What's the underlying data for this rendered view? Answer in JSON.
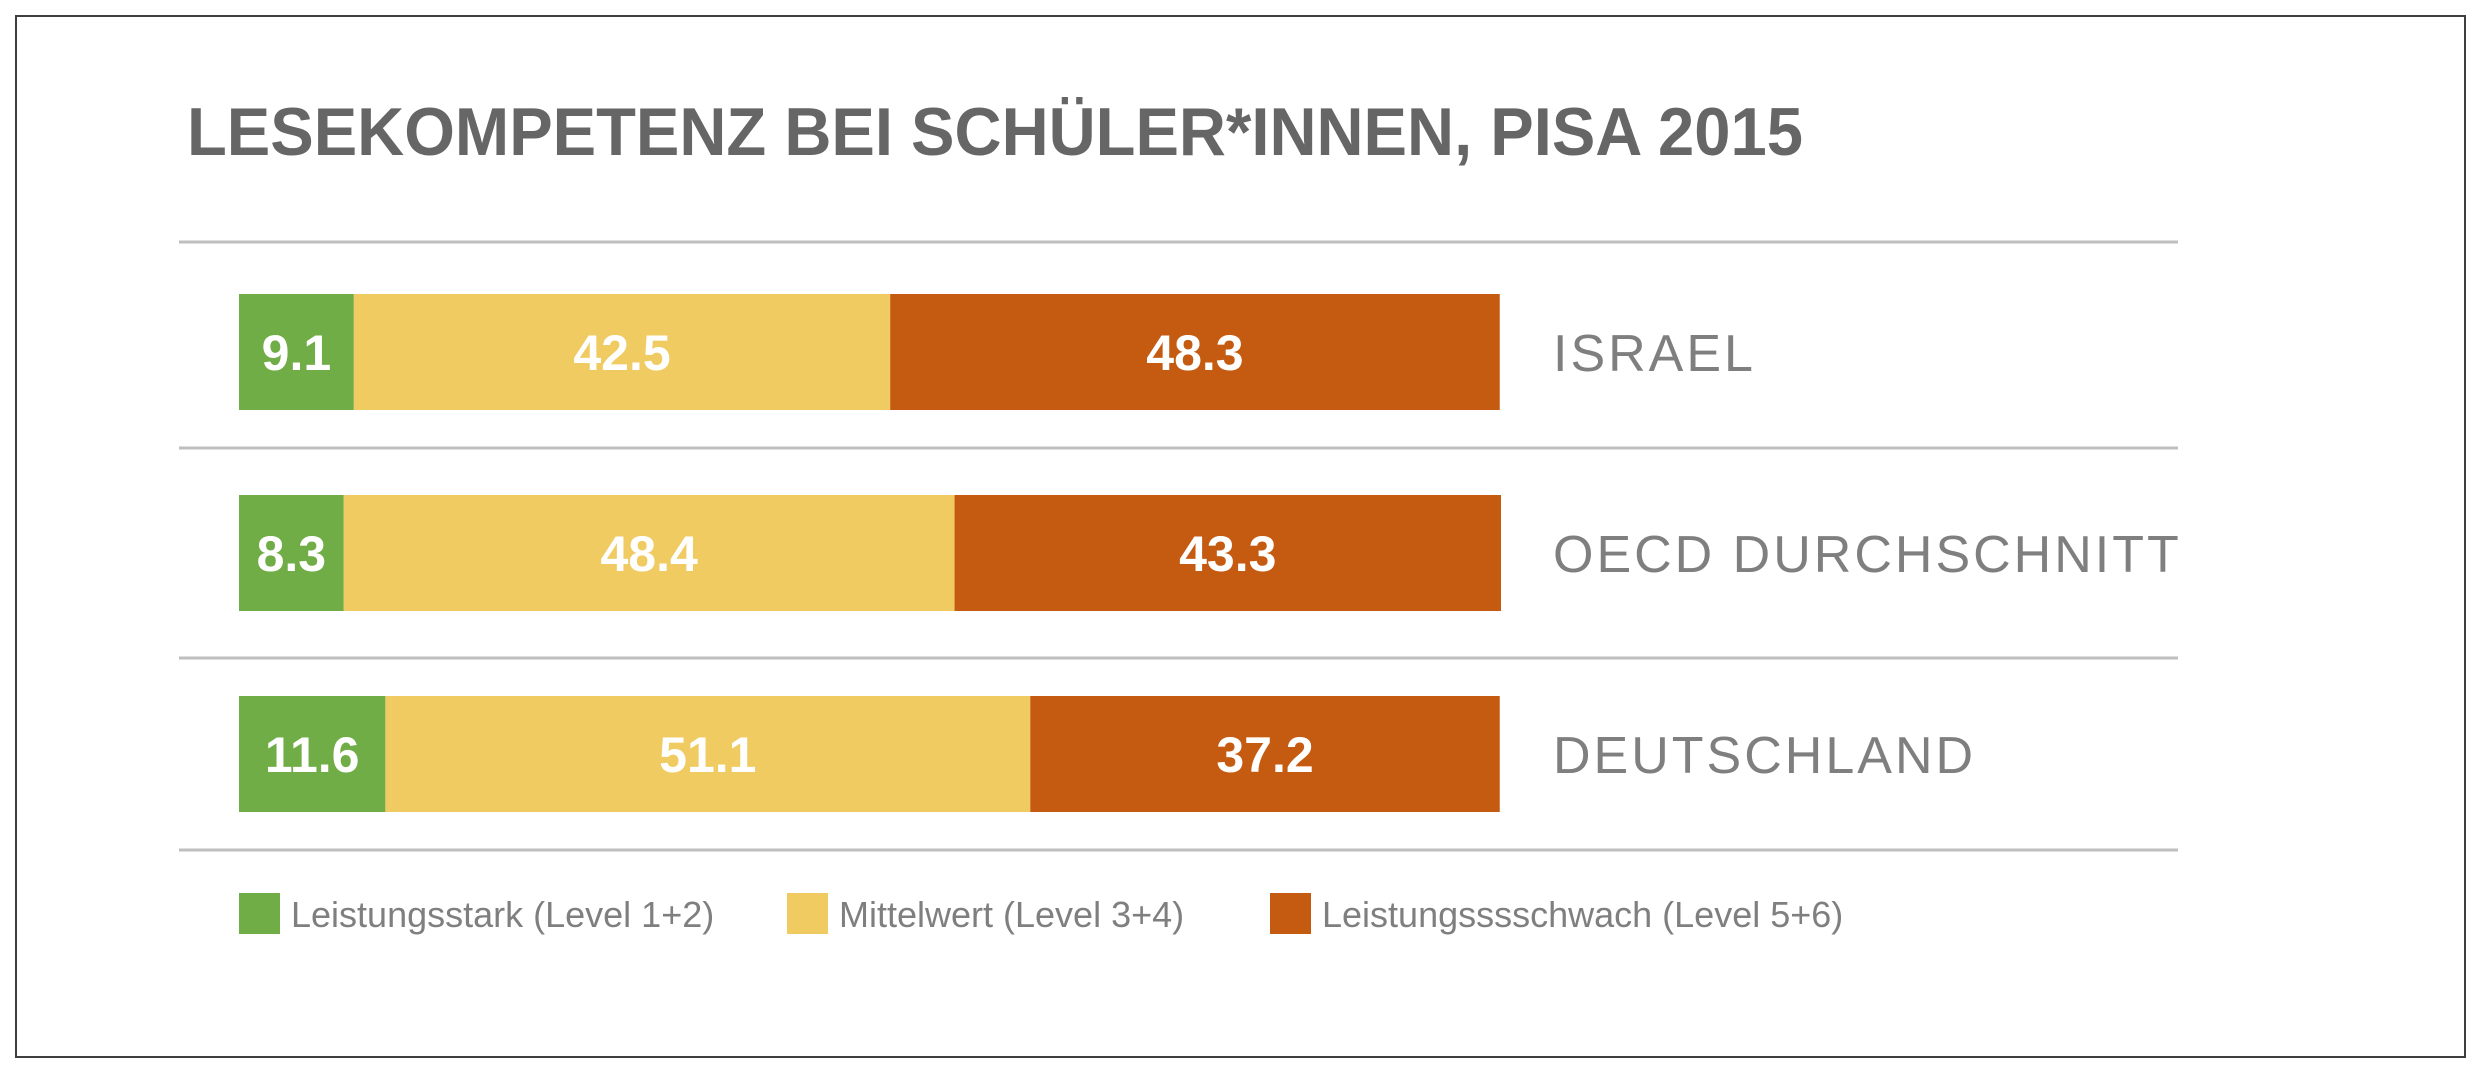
{
  "chart_data": {
    "type": "bar",
    "orientation": "horizontal",
    "stacked": true,
    "title": "LESEKOMPETENZ BEI SCHÜLER*INNEN, PISA 2015",
    "categories": [
      "ISRAEL",
      "OECD DURCHSCHNITT",
      "DEUTSCHLAND"
    ],
    "series": [
      {
        "name": "Leistungsstark (Level 1+2)",
        "color": "#70ad47",
        "values": [
          9.1,
          8.3,
          11.6
        ]
      },
      {
        "name": "Mittelwert (Level 3+4)",
        "color": "#f0cb62",
        "values": [
          42.5,
          48.4,
          51.1
        ]
      },
      {
        "name": "Leistungsssschwach (Level 5+6)",
        "color": "#c55a11",
        "values": [
          48.3,
          43.3,
          37.2
        ]
      }
    ],
    "xlim": [
      0,
      100
    ],
    "grid": false,
    "legend": "bottom-left",
    "data_labels": true,
    "colors": {
      "text": "#666666",
      "label": "#7f7f7f",
      "separator": "#bfbfbf",
      "frame": "#3f3f3f"
    }
  }
}
